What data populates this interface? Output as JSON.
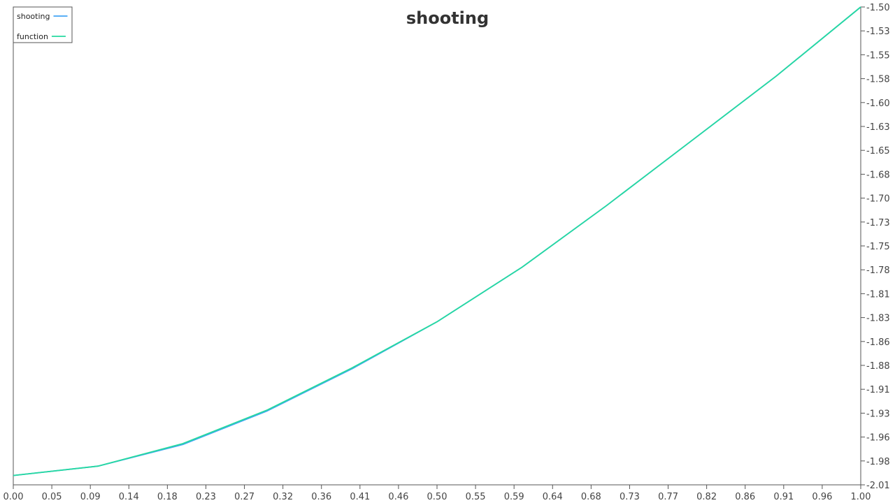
{
  "chart_data": {
    "type": "line",
    "title": "shooting",
    "xlabel": "",
    "ylabel": "",
    "xlim": [
      0.0,
      1.0
    ],
    "ylim": [
      -2.01,
      -1.5
    ],
    "x_tick_labels": [
      "0.00",
      "0.05",
      "0.09",
      "0.14",
      "0.18",
      "0.23",
      "0.27",
      "0.32",
      "0.36",
      "0.41",
      "0.46",
      "0.50",
      "0.55",
      "0.59",
      "0.64",
      "0.68",
      "0.73",
      "0.77",
      "0.82",
      "0.86",
      "0.91",
      "0.96",
      "1.00"
    ],
    "y_tick_labels": [
      "-1.50",
      "-1.53",
      "-1.55",
      "-1.58",
      "-1.60",
      "-1.63",
      "-1.65",
      "-1.68",
      "-1.70",
      "-1.73",
      "-1.75",
      "-1.78",
      "-1.81",
      "-1.83",
      "-1.86",
      "-1.88",
      "-1.91",
      "-1.93",
      "-1.96",
      "-1.98",
      "-2.01"
    ],
    "y_axis_side": "right",
    "grid": false,
    "legend_position": "top-left",
    "series": [
      {
        "name": "shooting",
        "color": "#42a5f5",
        "x": [
          0.0,
          0.1,
          0.2,
          0.3,
          0.4,
          0.5,
          0.6,
          0.7,
          0.8,
          0.9,
          1.0
        ],
        "y": [
          -2.0,
          -1.99,
          -1.967,
          -1.931,
          -1.886,
          -1.836,
          -1.778,
          -1.712,
          -1.643,
          -1.574,
          -1.5
        ]
      },
      {
        "name": "function",
        "color": "#26d9a0",
        "x": [
          0.0,
          0.1,
          0.2,
          0.3,
          0.4,
          0.5,
          0.6,
          0.7,
          0.8,
          0.9,
          1.0
        ],
        "y": [
          -2.0,
          -1.99,
          -1.966,
          -1.93,
          -1.885,
          -1.836,
          -1.778,
          -1.712,
          -1.643,
          -1.574,
          -1.5
        ]
      }
    ]
  }
}
